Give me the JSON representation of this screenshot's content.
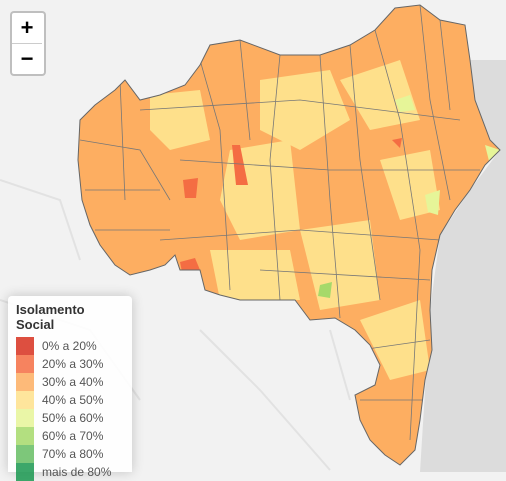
{
  "zoom": {
    "in": "+",
    "out": "−"
  },
  "legend": {
    "title": "Isolamento Social",
    "items": [
      {
        "label": "0% a 20%",
        "color": "#d7301f"
      },
      {
        "label": "20% a 30%",
        "color": "#f46d43"
      },
      {
        "label": "30% a 40%",
        "color": "#fdae61"
      },
      {
        "label": "40% a 50%",
        "color": "#fee08b"
      },
      {
        "label": "50% a 60%",
        "color": "#e6f598"
      },
      {
        "label": "60% a 70%",
        "color": "#a6d96a"
      },
      {
        "label": "70% a 80%",
        "color": "#66bd63"
      },
      {
        "label": "mais de 80%",
        "color": "#1a9850"
      }
    ]
  }
}
